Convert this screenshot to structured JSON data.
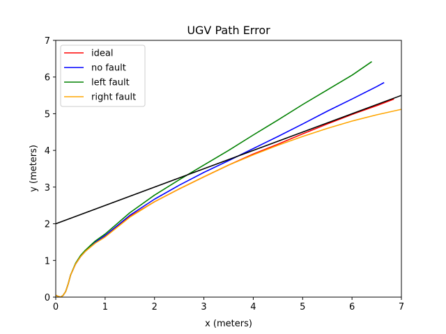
{
  "chart_data": {
    "type": "line",
    "title": "UGV Path Error",
    "xlabel": "x (meters)",
    "ylabel": "y (meters)",
    "xlim": [
      0,
      7
    ],
    "ylim": [
      0,
      7
    ],
    "xticks": [
      "0",
      "1",
      "2",
      "3",
      "4",
      "5",
      "6",
      "7"
    ],
    "yticks": [
      "0",
      "1",
      "2",
      "3",
      "4",
      "5",
      "6",
      "7"
    ],
    "grid": false,
    "legend_position": "top-left",
    "series": [
      {
        "name": "ideal",
        "color": "#ff0000",
        "x": [
          0.0,
          0.05,
          0.1,
          0.15,
          0.2,
          0.25,
          0.3,
          0.4,
          0.5,
          0.6,
          0.8,
          1.0,
          1.5,
          2.0,
          2.5,
          3.0,
          3.5,
          4.0,
          4.5,
          5.0,
          5.5,
          6.0,
          6.5,
          6.85
        ],
        "y": [
          0.05,
          0.02,
          0.0,
          0.05,
          0.15,
          0.35,
          0.6,
          0.9,
          1.1,
          1.25,
          1.48,
          1.65,
          2.2,
          2.6,
          2.95,
          3.28,
          3.6,
          3.9,
          4.17,
          4.45,
          4.72,
          4.98,
          5.22,
          5.4
        ]
      },
      {
        "name": "no fault",
        "color": "#0000ff",
        "x": [
          0.0,
          0.05,
          0.1,
          0.15,
          0.2,
          0.25,
          0.3,
          0.4,
          0.5,
          0.6,
          0.8,
          1.0,
          1.5,
          2.0,
          2.5,
          3.0,
          3.5,
          4.0,
          4.5,
          5.0,
          5.5,
          6.0,
          6.5,
          6.65
        ],
        "y": [
          0.05,
          0.02,
          0.0,
          0.05,
          0.15,
          0.35,
          0.6,
          0.9,
          1.1,
          1.25,
          1.5,
          1.68,
          2.23,
          2.67,
          3.05,
          3.4,
          3.72,
          4.05,
          4.38,
          4.72,
          5.07,
          5.4,
          5.74,
          5.85
        ]
      },
      {
        "name": "left fault",
        "color": "#008000",
        "x": [
          0.0,
          0.05,
          0.1,
          0.15,
          0.2,
          0.25,
          0.3,
          0.4,
          0.5,
          0.6,
          0.8,
          1.0,
          1.5,
          2.0,
          2.5,
          3.0,
          3.5,
          4.0,
          4.5,
          5.0,
          5.5,
          6.0,
          6.4
        ],
        "y": [
          0.05,
          0.02,
          0.0,
          0.05,
          0.15,
          0.35,
          0.6,
          0.92,
          1.13,
          1.28,
          1.53,
          1.72,
          2.3,
          2.78,
          3.2,
          3.6,
          4.0,
          4.42,
          4.83,
          5.25,
          5.65,
          6.05,
          6.42
        ]
      },
      {
        "name": "right fault",
        "color": "#ffa500",
        "x": [
          0.0,
          0.05,
          0.1,
          0.15,
          0.2,
          0.25,
          0.3,
          0.4,
          0.5,
          0.6,
          0.8,
          1.0,
          1.5,
          2.0,
          2.5,
          3.0,
          3.5,
          4.0,
          4.5,
          5.0,
          5.5,
          6.0,
          6.5,
          7.0
        ],
        "y": [
          0.05,
          0.02,
          0.0,
          0.05,
          0.15,
          0.35,
          0.6,
          0.9,
          1.1,
          1.25,
          1.47,
          1.64,
          2.18,
          2.6,
          2.95,
          3.28,
          3.6,
          3.88,
          4.14,
          4.38,
          4.6,
          4.8,
          4.97,
          5.12
        ]
      },
      {
        "name": "",
        "color": "#000000",
        "x": [
          0,
          7
        ],
        "y": [
          2.0,
          5.5
        ]
      }
    ]
  }
}
